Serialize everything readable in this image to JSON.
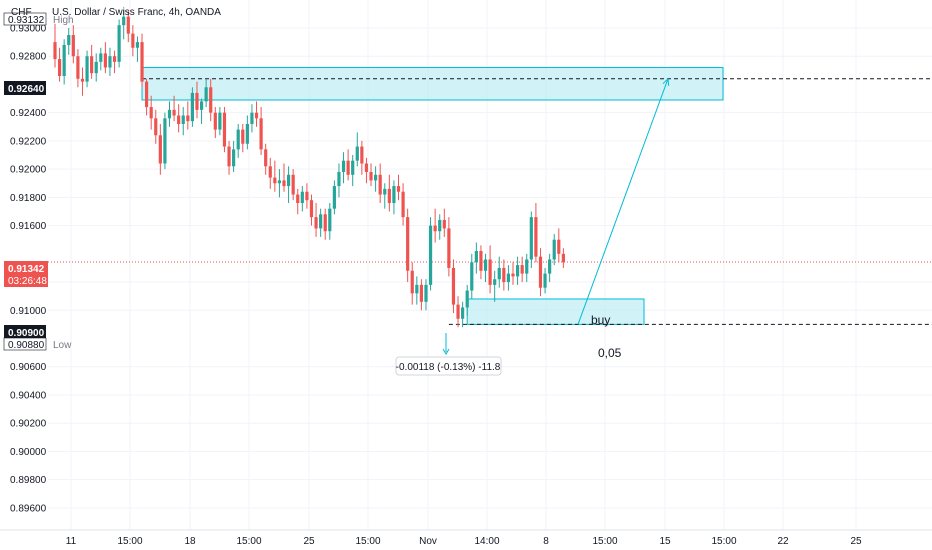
{
  "header": {
    "currency": "CHF",
    "instrument": "U.S. Dollar / Swiss Franc, 4h, OANDA"
  },
  "price_tags": {
    "high_label": "High",
    "high_value": "0.93132",
    "current_value": "0.91342",
    "countdown": "03:26:48",
    "marker_value": "0.92640",
    "support_value": "0.90900",
    "low_value": "0.90880",
    "low_label": "Low"
  },
  "annotations": {
    "buy_label": "buy",
    "measure_label": "-0.00118 (-0.13%) -11.8",
    "note": "0,05"
  },
  "colors": {
    "bull": "#26a69a",
    "bear": "#ef5350",
    "zone_fill": "#b2ebf2",
    "zone_border": "#00bcd4",
    "current_price": "#ef5350",
    "tag_dark": "#131722"
  },
  "chart_data": {
    "type": "candlestick",
    "title": "U.S. Dollar / Swiss Franc, 4h, OANDA",
    "ylim": [
      0.895,
      0.9317
    ],
    "y_ticks": [
      "0.93000",
      "0.92800",
      "0.92400",
      "0.92200",
      "0.92000",
      "0.91800",
      "0.91600",
      "0.91200",
      "0.91000",
      "0.90600",
      "0.90400",
      "0.90200",
      "0.90000",
      "0.89800",
      "0.89600"
    ],
    "x_tick_labels": [
      "11",
      "15:00",
      "18",
      "15:00",
      "25",
      "15:00",
      "Nov",
      "14:00",
      "8",
      "15:00",
      "15",
      "15:00",
      "22",
      "25"
    ],
    "grid": true,
    "candles": [
      {
        "o": 0.929,
        "h": 0.9303,
        "l": 0.9272,
        "c": 0.9278
      },
      {
        "o": 0.9278,
        "h": 0.9286,
        "l": 0.9262,
        "c": 0.9266
      },
      {
        "o": 0.9266,
        "h": 0.9292,
        "l": 0.926,
        "c": 0.9288
      },
      {
        "o": 0.9288,
        "h": 0.93,
        "l": 0.9281,
        "c": 0.9295
      },
      {
        "o": 0.9295,
        "h": 0.9302,
        "l": 0.9275,
        "c": 0.928
      },
      {
        "o": 0.928,
        "h": 0.9285,
        "l": 0.9258,
        "c": 0.9264
      },
      {
        "o": 0.9264,
        "h": 0.9272,
        "l": 0.9252,
        "c": 0.9262
      },
      {
        "o": 0.9262,
        "h": 0.9284,
        "l": 0.9258,
        "c": 0.928
      },
      {
        "o": 0.928,
        "h": 0.9288,
        "l": 0.9264,
        "c": 0.9268
      },
      {
        "o": 0.9268,
        "h": 0.9282,
        "l": 0.9262,
        "c": 0.9276
      },
      {
        "o": 0.9276,
        "h": 0.9286,
        "l": 0.927,
        "c": 0.9282
      },
      {
        "o": 0.9282,
        "h": 0.929,
        "l": 0.9268,
        "c": 0.9272
      },
      {
        "o": 0.9272,
        "h": 0.9286,
        "l": 0.9266,
        "c": 0.928
      },
      {
        "o": 0.928,
        "h": 0.9284,
        "l": 0.9268,
        "c": 0.9276
      },
      {
        "o": 0.9276,
        "h": 0.9306,
        "l": 0.9272,
        "c": 0.9302
      },
      {
        "o": 0.9302,
        "h": 0.9313,
        "l": 0.9292,
        "c": 0.9308
      },
      {
        "o": 0.9308,
        "h": 0.9312,
        "l": 0.929,
        "c": 0.9296
      },
      {
        "o": 0.9296,
        "h": 0.9302,
        "l": 0.928,
        "c": 0.9286
      },
      {
        "o": 0.9286,
        "h": 0.9294,
        "l": 0.9276,
        "c": 0.929
      },
      {
        "o": 0.929,
        "h": 0.9296,
        "l": 0.9258,
        "c": 0.9262
      },
      {
        "o": 0.9262,
        "h": 0.9264,
        "l": 0.9238,
        "c": 0.9244
      },
      {
        "o": 0.9244,
        "h": 0.9252,
        "l": 0.9228,
        "c": 0.9236
      },
      {
        "o": 0.9236,
        "h": 0.9242,
        "l": 0.9218,
        "c": 0.9224
      },
      {
        "o": 0.9224,
        "h": 0.9232,
        "l": 0.9196,
        "c": 0.9204
      },
      {
        "o": 0.9204,
        "h": 0.924,
        "l": 0.92,
        "c": 0.9236
      },
      {
        "o": 0.9236,
        "h": 0.9248,
        "l": 0.923,
        "c": 0.9242
      },
      {
        "o": 0.9242,
        "h": 0.9252,
        "l": 0.9234,
        "c": 0.9238
      },
      {
        "o": 0.9238,
        "h": 0.9246,
        "l": 0.9226,
        "c": 0.9232
      },
      {
        "o": 0.9232,
        "h": 0.9244,
        "l": 0.9224,
        "c": 0.9238
      },
      {
        "o": 0.9238,
        "h": 0.9248,
        "l": 0.9228,
        "c": 0.9234
      },
      {
        "o": 0.9234,
        "h": 0.9258,
        "l": 0.923,
        "c": 0.9254
      },
      {
        "o": 0.9254,
        "h": 0.9262,
        "l": 0.9236,
        "c": 0.9242
      },
      {
        "o": 0.9242,
        "h": 0.925,
        "l": 0.9232,
        "c": 0.9248
      },
      {
        "o": 0.9248,
        "h": 0.9264,
        "l": 0.9244,
        "c": 0.9258
      },
      {
        "o": 0.9258,
        "h": 0.9264,
        "l": 0.9234,
        "c": 0.924
      },
      {
        "o": 0.924,
        "h": 0.9244,
        "l": 0.9222,
        "c": 0.9228
      },
      {
        "o": 0.9228,
        "h": 0.9244,
        "l": 0.9224,
        "c": 0.924
      },
      {
        "o": 0.924,
        "h": 0.9244,
        "l": 0.9212,
        "c": 0.9216
      },
      {
        "o": 0.9216,
        "h": 0.922,
        "l": 0.9196,
        "c": 0.9202
      },
      {
        "o": 0.9202,
        "h": 0.922,
        "l": 0.9198,
        "c": 0.9214
      },
      {
        "o": 0.9214,
        "h": 0.9232,
        "l": 0.9208,
        "c": 0.9228
      },
      {
        "o": 0.9228,
        "h": 0.9232,
        "l": 0.9212,
        "c": 0.9218
      },
      {
        "o": 0.9218,
        "h": 0.9238,
        "l": 0.9214,
        "c": 0.9232
      },
      {
        "o": 0.9232,
        "h": 0.9246,
        "l": 0.9226,
        "c": 0.924
      },
      {
        "o": 0.924,
        "h": 0.9248,
        "l": 0.923,
        "c": 0.9236
      },
      {
        "o": 0.9236,
        "h": 0.9244,
        "l": 0.921,
        "c": 0.9214
      },
      {
        "o": 0.9214,
        "h": 0.9218,
        "l": 0.9196,
        "c": 0.9202
      },
      {
        "o": 0.9202,
        "h": 0.9208,
        "l": 0.9186,
        "c": 0.9194
      },
      {
        "o": 0.9194,
        "h": 0.9206,
        "l": 0.9184,
        "c": 0.919
      },
      {
        "o": 0.919,
        "h": 0.92,
        "l": 0.918,
        "c": 0.9192
      },
      {
        "o": 0.9192,
        "h": 0.9204,
        "l": 0.9184,
        "c": 0.9188
      },
      {
        "o": 0.9188,
        "h": 0.9202,
        "l": 0.9176,
        "c": 0.9196
      },
      {
        "o": 0.9196,
        "h": 0.92,
        "l": 0.9178,
        "c": 0.9182
      },
      {
        "o": 0.9182,
        "h": 0.9186,
        "l": 0.9168,
        "c": 0.9176
      },
      {
        "o": 0.9176,
        "h": 0.9188,
        "l": 0.917,
        "c": 0.9184
      },
      {
        "o": 0.9184,
        "h": 0.919,
        "l": 0.9172,
        "c": 0.9178
      },
      {
        "o": 0.9178,
        "h": 0.9182,
        "l": 0.916,
        "c": 0.9166
      },
      {
        "o": 0.9166,
        "h": 0.9176,
        "l": 0.9152,
        "c": 0.9158
      },
      {
        "o": 0.9158,
        "h": 0.9172,
        "l": 0.9152,
        "c": 0.9168
      },
      {
        "o": 0.9168,
        "h": 0.9172,
        "l": 0.915,
        "c": 0.9156
      },
      {
        "o": 0.9156,
        "h": 0.9176,
        "l": 0.915,
        "c": 0.9172
      },
      {
        "o": 0.9172,
        "h": 0.9192,
        "l": 0.9168,
        "c": 0.9188
      },
      {
        "o": 0.9188,
        "h": 0.9204,
        "l": 0.918,
        "c": 0.9198
      },
      {
        "o": 0.9198,
        "h": 0.9212,
        "l": 0.919,
        "c": 0.9206
      },
      {
        "o": 0.9206,
        "h": 0.9214,
        "l": 0.9192,
        "c": 0.9196
      },
      {
        "o": 0.9196,
        "h": 0.921,
        "l": 0.9188,
        "c": 0.9206
      },
      {
        "o": 0.9206,
        "h": 0.9226,
        "l": 0.9202,
        "c": 0.9216
      },
      {
        "o": 0.9216,
        "h": 0.922,
        "l": 0.9196,
        "c": 0.9204
      },
      {
        "o": 0.9204,
        "h": 0.9208,
        "l": 0.919,
        "c": 0.9198
      },
      {
        "o": 0.9198,
        "h": 0.9204,
        "l": 0.9188,
        "c": 0.9192
      },
      {
        "o": 0.9192,
        "h": 0.9202,
        "l": 0.9184,
        "c": 0.9196
      },
      {
        "o": 0.9196,
        "h": 0.9204,
        "l": 0.9176,
        "c": 0.9182
      },
      {
        "o": 0.9182,
        "h": 0.919,
        "l": 0.9172,
        "c": 0.9186
      },
      {
        "o": 0.9186,
        "h": 0.9196,
        "l": 0.917,
        "c": 0.9176
      },
      {
        "o": 0.9176,
        "h": 0.9192,
        "l": 0.9168,
        "c": 0.9188
      },
      {
        "o": 0.9188,
        "h": 0.9196,
        "l": 0.9178,
        "c": 0.9184
      },
      {
        "o": 0.9184,
        "h": 0.919,
        "l": 0.916,
        "c": 0.9166
      },
      {
        "o": 0.9166,
        "h": 0.9172,
        "l": 0.912,
        "c": 0.9128
      },
      {
        "o": 0.9128,
        "h": 0.9134,
        "l": 0.9104,
        "c": 0.9112
      },
      {
        "o": 0.9112,
        "h": 0.9124,
        "l": 0.9104,
        "c": 0.9118
      },
      {
        "o": 0.9118,
        "h": 0.9122,
        "l": 0.91,
        "c": 0.9106
      },
      {
        "o": 0.9106,
        "h": 0.9122,
        "l": 0.91,
        "c": 0.9118
      },
      {
        "o": 0.9118,
        "h": 0.9166,
        "l": 0.9114,
        "c": 0.916
      },
      {
        "o": 0.916,
        "h": 0.9172,
        "l": 0.9148,
        "c": 0.9156
      },
      {
        "o": 0.9156,
        "h": 0.9168,
        "l": 0.915,
        "c": 0.9164
      },
      {
        "o": 0.9164,
        "h": 0.9172,
        "l": 0.9152,
        "c": 0.9158
      },
      {
        "o": 0.9158,
        "h": 0.9166,
        "l": 0.9124,
        "c": 0.913
      },
      {
        "o": 0.913,
        "h": 0.9136,
        "l": 0.9098,
        "c": 0.9104
      },
      {
        "o": 0.9104,
        "h": 0.911,
        "l": 0.9088,
        "c": 0.9094
      },
      {
        "o": 0.9094,
        "h": 0.9106,
        "l": 0.9088,
        "c": 0.9102
      },
      {
        "o": 0.9102,
        "h": 0.9118,
        "l": 0.9096,
        "c": 0.9114
      },
      {
        "o": 0.9114,
        "h": 0.914,
        "l": 0.9108,
        "c": 0.9134
      },
      {
        "o": 0.9134,
        "h": 0.9148,
        "l": 0.9126,
        "c": 0.9142
      },
      {
        "o": 0.9142,
        "h": 0.9146,
        "l": 0.9122,
        "c": 0.9128
      },
      {
        "o": 0.9128,
        "h": 0.914,
        "l": 0.912,
        "c": 0.9136
      },
      {
        "o": 0.9136,
        "h": 0.9146,
        "l": 0.9112,
        "c": 0.9118
      },
      {
        "o": 0.9118,
        "h": 0.9128,
        "l": 0.9106,
        "c": 0.9122
      },
      {
        "o": 0.9122,
        "h": 0.9138,
        "l": 0.9116,
        "c": 0.913
      },
      {
        "o": 0.913,
        "h": 0.9136,
        "l": 0.9114,
        "c": 0.912
      },
      {
        "o": 0.912,
        "h": 0.9132,
        "l": 0.9114,
        "c": 0.9126
      },
      {
        "o": 0.9126,
        "h": 0.9134,
        "l": 0.9118,
        "c": 0.9124
      },
      {
        "o": 0.9124,
        "h": 0.9138,
        "l": 0.9118,
        "c": 0.9132
      },
      {
        "o": 0.9132,
        "h": 0.9138,
        "l": 0.912,
        "c": 0.9126
      },
      {
        "o": 0.9126,
        "h": 0.914,
        "l": 0.912,
        "c": 0.9136
      },
      {
        "o": 0.9136,
        "h": 0.917,
        "l": 0.913,
        "c": 0.9166
      },
      {
        "o": 0.9166,
        "h": 0.9176,
        "l": 0.9134,
        "c": 0.9138
      },
      {
        "o": 0.9138,
        "h": 0.9144,
        "l": 0.911,
        "c": 0.9116
      },
      {
        "o": 0.9116,
        "h": 0.913,
        "l": 0.9112,
        "c": 0.9126
      },
      {
        "o": 0.9126,
        "h": 0.914,
        "l": 0.912,
        "c": 0.9136
      },
      {
        "o": 0.9136,
        "h": 0.9154,
        "l": 0.9132,
        "c": 0.915
      },
      {
        "o": 0.915,
        "h": 0.9158,
        "l": 0.9134,
        "c": 0.914
      },
      {
        "o": 0.914,
        "h": 0.9144,
        "l": 0.913,
        "c": 0.9134
      }
    ],
    "zones": [
      {
        "name": "resistance-zone",
        "from_index": 19,
        "to_index": 200,
        "top": 0.9272,
        "bottom": 0.9249
      },
      {
        "name": "buy-zone",
        "from_index": 90,
        "to_index": 185,
        "top": 0.9108,
        "bottom": 0.909
      }
    ],
    "levels": [
      {
        "name": "target-level",
        "value": 0.9264,
        "from_index": 19
      },
      {
        "name": "support-level",
        "value": 0.909,
        "from_index": 86
      },
      {
        "name": "current-price-level",
        "value": 0.91342,
        "from_index": 0
      }
    ],
    "arrow": {
      "from_index": 172,
      "from_value": 0.909,
      "to_index": 190,
      "to_value": 0.9264
    }
  }
}
